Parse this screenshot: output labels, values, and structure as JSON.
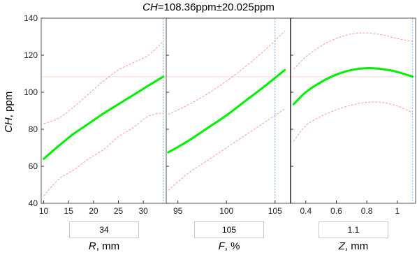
{
  "title": {
    "var": "CH",
    "text": "=108.36ppm±20.025ppm"
  },
  "ylabel": {
    "var": "CH",
    "unit": ", ppm"
  },
  "colors": {
    "main": "#00ee00",
    "ci": "#ff9a9a",
    "ref": "#ffd8d8",
    "current": "#7fb6ff",
    "grid": "#e6e6e6"
  },
  "chart_data": [
    {
      "type": "line",
      "panel": "R",
      "xlabel": {
        "var": "R",
        "unit": ", mm"
      },
      "current_value": "34",
      "xlim": [
        9.5,
        34.6
      ],
      "ylim": [
        40,
        140
      ],
      "xticks": [
        10,
        15,
        20,
        25,
        30
      ],
      "yticks": [
        40,
        60,
        80,
        100,
        120,
        140
      ],
      "reference_y": 108.36,
      "current_x": 34,
      "series": [
        {
          "role": "prediction",
          "x": [
            10,
            13,
            16,
            19,
            22,
            25,
            28,
            31,
            34
          ],
          "y": [
            64,
            71,
            77.5,
            83,
            88.5,
            93.5,
            98.5,
            103.5,
            108.4
          ]
        },
        {
          "role": "upper",
          "x": [
            10,
            13,
            16,
            19,
            22,
            25,
            28,
            31,
            34
          ],
          "y": [
            83,
            86,
            92,
            99,
            106,
            112,
            116,
            120,
            127.5
          ]
        },
        {
          "role": "lower",
          "x": [
            10,
            13,
            16,
            19,
            22,
            25,
            28,
            31,
            34
          ],
          "y": [
            44,
            53,
            58,
            64,
            69,
            76,
            81,
            87,
            89
          ]
        }
      ]
    },
    {
      "type": "line",
      "panel": "F",
      "xlabel": {
        "var": "F",
        "unit": ", %"
      },
      "current_value": "105",
      "xlim": [
        93.8,
        106.6
      ],
      "ylim": [
        40,
        140
      ],
      "xticks": [
        95,
        100,
        105
      ],
      "yticks": [
        40,
        60,
        80,
        100,
        120,
        140
      ],
      "reference_y": 108.36,
      "current_x": 105,
      "series": [
        {
          "role": "prediction",
          "x": [
            94,
            96,
            98,
            100,
            102,
            104,
            106
          ],
          "y": [
            67.5,
            73.5,
            80.5,
            87.5,
            95.5,
            103.5,
            112
          ]
        },
        {
          "role": "upper",
          "x": [
            94,
            96,
            98,
            100,
            102,
            104,
            106
          ],
          "y": [
            88,
            93,
            99,
            106,
            114,
            123,
            133
          ]
        },
        {
          "role": "lower",
          "x": [
            94,
            96,
            98,
            100,
            102,
            104,
            106
          ],
          "y": [
            47,
            56,
            63,
            70,
            77,
            84,
            91
          ]
        }
      ]
    },
    {
      "type": "line",
      "panel": "Z",
      "xlabel": {
        "var": "Z",
        "unit": ", mm"
      },
      "current_value": "1.1",
      "xlim": [
        0.3,
        1.12
      ],
      "ylim": [
        40,
        140
      ],
      "xticks": [
        0.4,
        0.6,
        0.8,
        1
      ],
      "xticklabels": [
        "0.4",
        "0.6",
        "0.8",
        "1"
      ],
      "yticks": [
        40,
        60,
        80,
        100,
        120,
        140
      ],
      "reference_y": 108.36,
      "current_x": 1.1,
      "series": [
        {
          "role": "prediction",
          "x": [
            0.32,
            0.4,
            0.5,
            0.6,
            0.7,
            0.8,
            0.9,
            1.0,
            1.1
          ],
          "y": [
            93.5,
            100,
            105.5,
            109.5,
            112,
            113,
            112.5,
            111,
            108.4
          ]
        },
        {
          "role": "upper",
          "x": [
            0.32,
            0.4,
            0.5,
            0.6,
            0.7,
            0.8,
            0.9,
            1.0,
            1.1
          ],
          "y": [
            112.5,
            119,
            125,
            129,
            131.5,
            132,
            131,
            129,
            127.5
          ]
        },
        {
          "role": "lower",
          "x": [
            0.32,
            0.4,
            0.5,
            0.6,
            0.7,
            0.8,
            0.9,
            1.0,
            1.1
          ],
          "y": [
            73.5,
            82,
            87,
            90.5,
            93,
            94.5,
            94.5,
            92.5,
            89
          ]
        }
      ]
    }
  ]
}
